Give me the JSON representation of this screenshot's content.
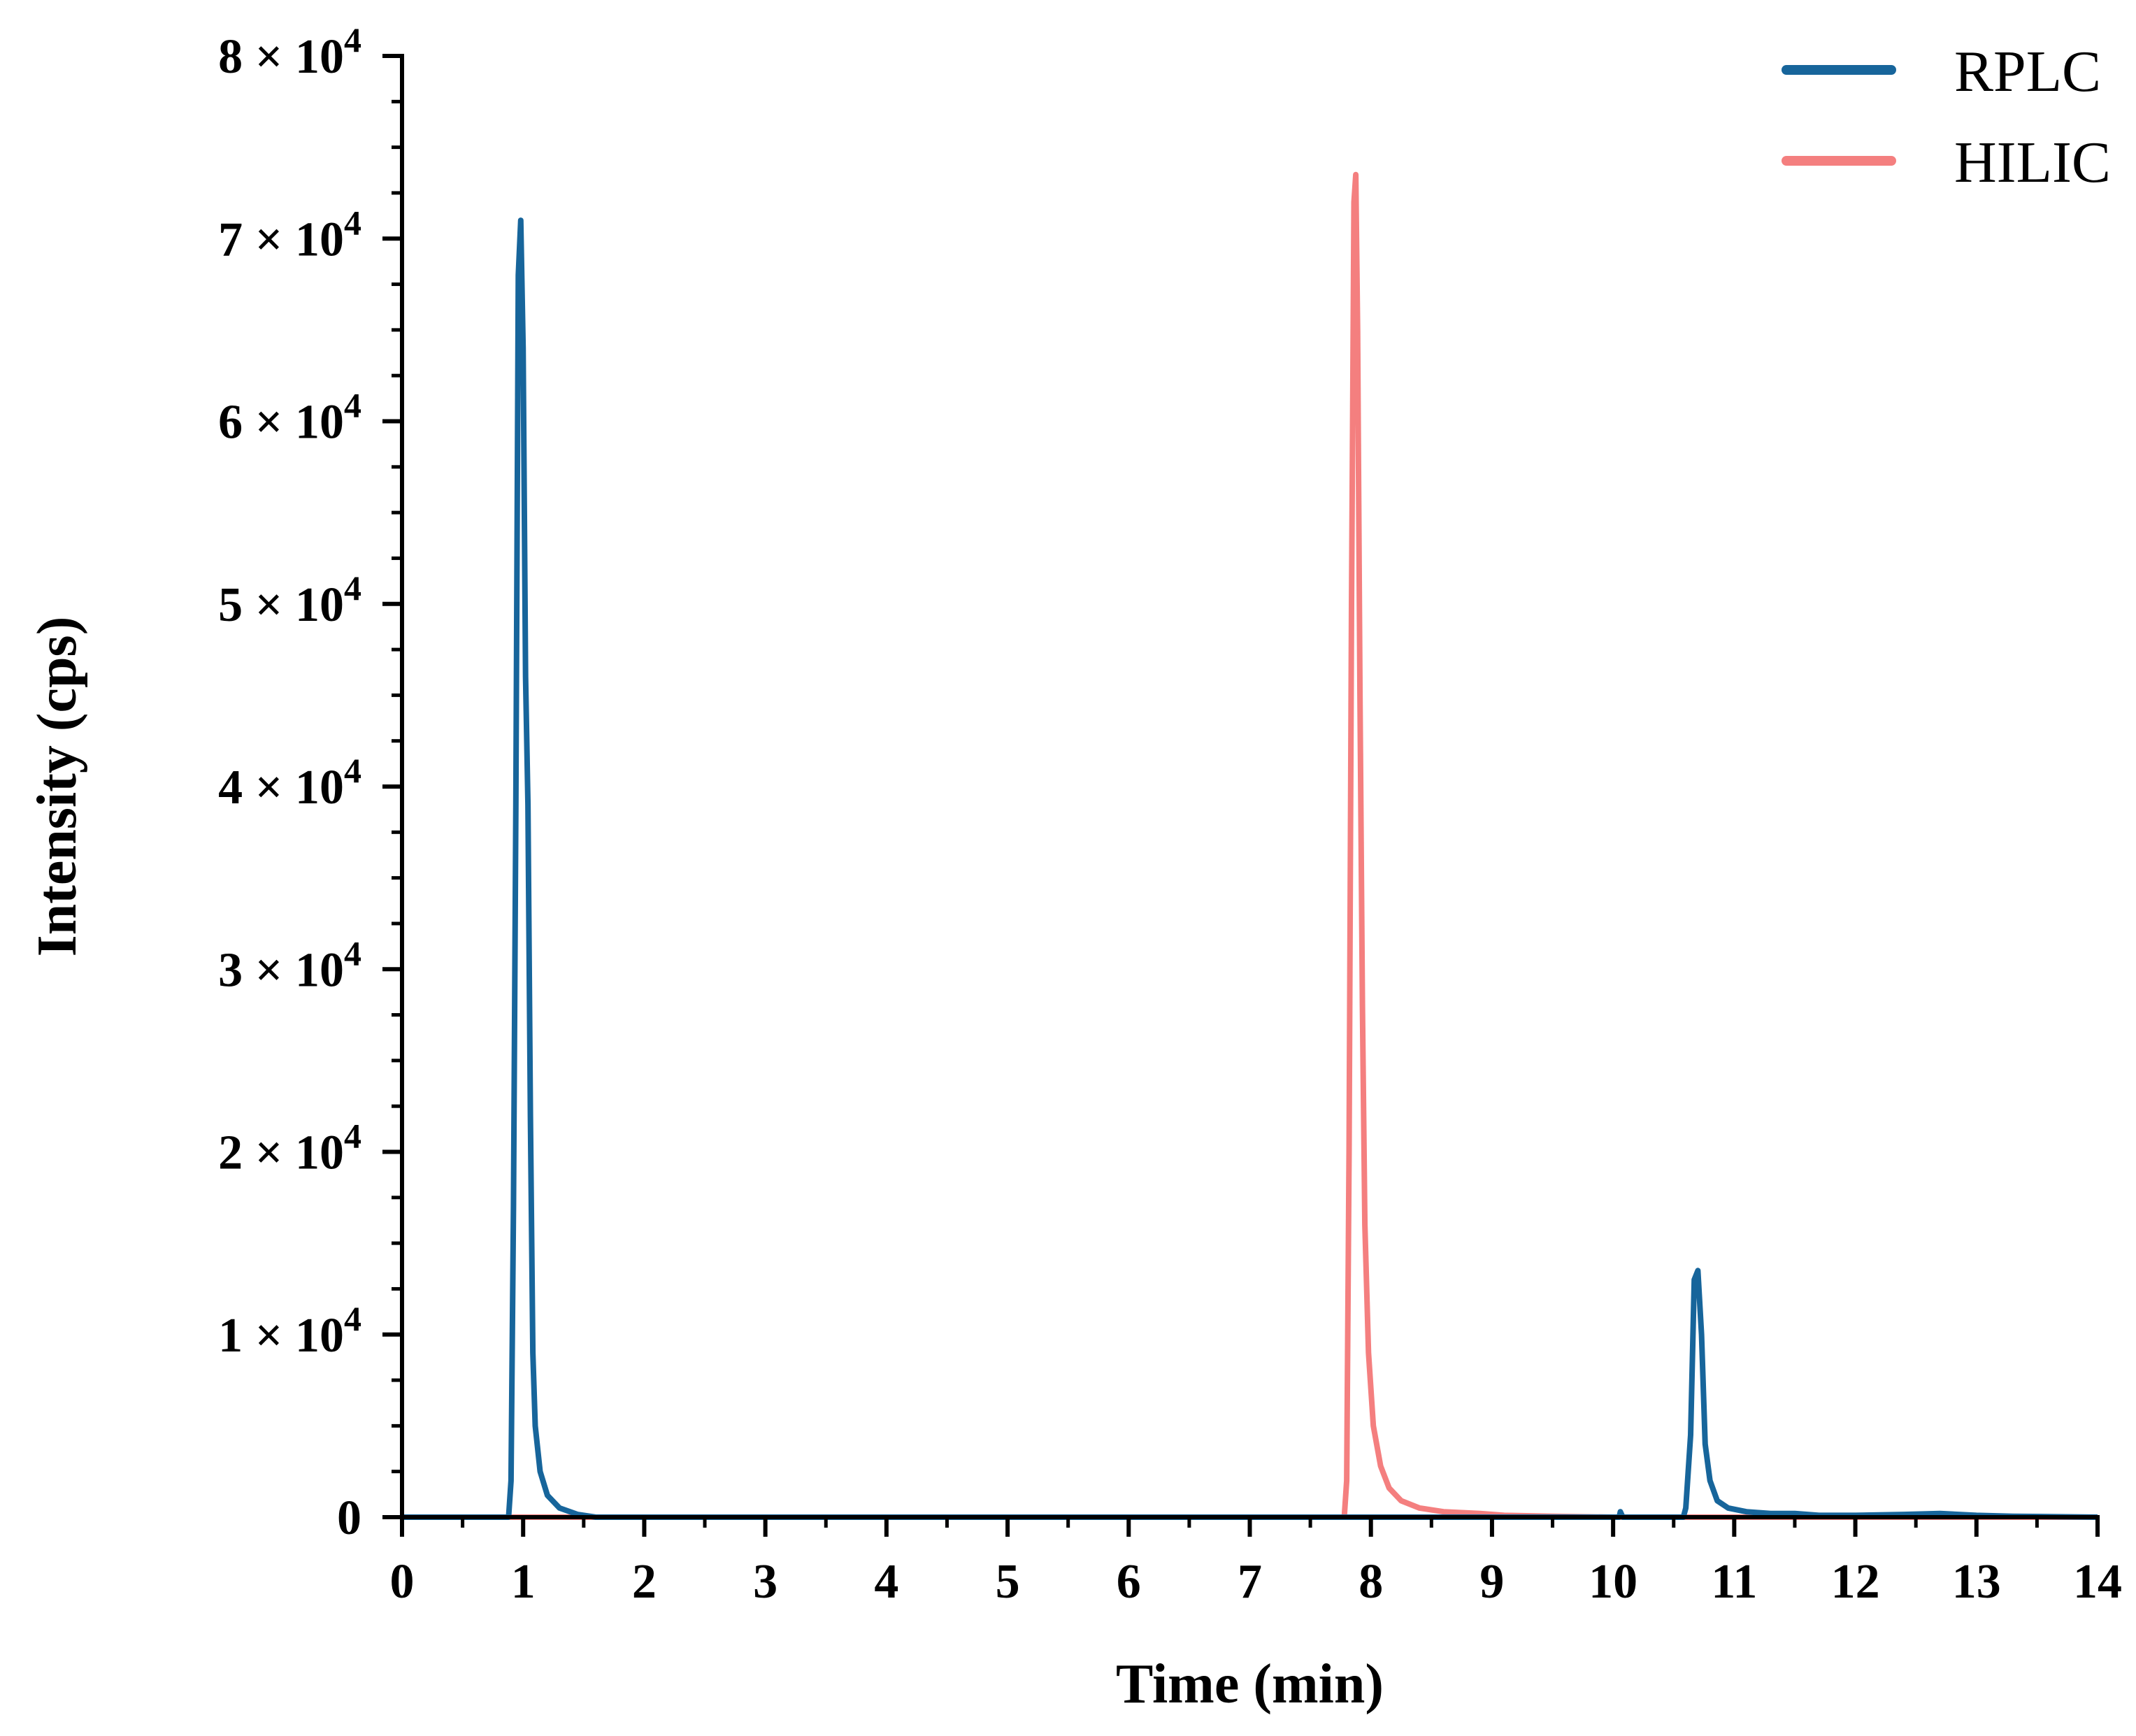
{
  "chart_data": {
    "type": "line",
    "title": "",
    "xlabel": "Time (min)",
    "ylabel": "Intensity (cps)",
    "xlim": [
      0,
      14
    ],
    "ylim": [
      0,
      80000
    ],
    "x_ticks": [
      0,
      1,
      2,
      3,
      4,
      5,
      6,
      7,
      8,
      9,
      10,
      11,
      12,
      13,
      14
    ],
    "x_tick_labels": [
      "0",
      "1",
      "2",
      "3",
      "4",
      "5",
      "6",
      "7",
      "8",
      "9",
      "10",
      "11",
      "12",
      "13",
      "14"
    ],
    "y_ticks": [
      0,
      10000,
      20000,
      30000,
      40000,
      50000,
      60000,
      70000,
      80000
    ],
    "y_tick_labels": [
      {
        "coef": "0",
        "exp": ""
      },
      {
        "coef": "1 × 10",
        "exp": "4"
      },
      {
        "coef": "2 × 10",
        "exp": "4"
      },
      {
        "coef": "3 × 10",
        "exp": "4"
      },
      {
        "coef": "4 × 10",
        "exp": "4"
      },
      {
        "coef": "5 × 10",
        "exp": "4"
      },
      {
        "coef": "6 × 10",
        "exp": "4"
      },
      {
        "coef": "7 × 10",
        "exp": "4"
      },
      {
        "coef": "8 × 10",
        "exp": "4"
      }
    ],
    "grid": false,
    "legend_position": "top-right",
    "series": [
      {
        "name": "RPLC",
        "color": "#17659b",
        "points": [
          [
            0,
            0
          ],
          [
            0.88,
            0
          ],
          [
            0.9,
            2000
          ],
          [
            0.92,
            17000
          ],
          [
            0.94,
            39000
          ],
          [
            0.96,
            68000
          ],
          [
            0.98,
            71000
          ],
          [
            1.0,
            64000
          ],
          [
            1.02,
            46000
          ],
          [
            1.04,
            39000
          ],
          [
            1.06,
            22000
          ],
          [
            1.08,
            9000
          ],
          [
            1.1,
            5000
          ],
          [
            1.14,
            2500
          ],
          [
            1.2,
            1200
          ],
          [
            1.3,
            500
          ],
          [
            1.45,
            150
          ],
          [
            1.6,
            0
          ],
          [
            10.05,
            0
          ],
          [
            10.06,
            300
          ],
          [
            10.08,
            0
          ],
          [
            10.58,
            0
          ],
          [
            10.6,
            500
          ],
          [
            10.64,
            4500
          ],
          [
            10.67,
            13000
          ],
          [
            10.7,
            13500
          ],
          [
            10.73,
            10000
          ],
          [
            10.76,
            4000
          ],
          [
            10.8,
            2000
          ],
          [
            10.86,
            900
          ],
          [
            10.95,
            500
          ],
          [
            11.1,
            300
          ],
          [
            11.3,
            200
          ],
          [
            11.5,
            200
          ],
          [
            11.7,
            100
          ],
          [
            12.0,
            100
          ],
          [
            12.4,
            150
          ],
          [
            12.7,
            200
          ],
          [
            13.0,
            100
          ],
          [
            13.3,
            50
          ],
          [
            14.0,
            0
          ]
        ]
      },
      {
        "name": "HILIC",
        "color": "#f47f7f",
        "points": [
          [
            0,
            0
          ],
          [
            7.78,
            0
          ],
          [
            7.8,
            2000
          ],
          [
            7.82,
            20000
          ],
          [
            7.84,
            50000
          ],
          [
            7.86,
            72000
          ],
          [
            7.875,
            73500
          ],
          [
            7.89,
            65000
          ],
          [
            7.91,
            45000
          ],
          [
            7.93,
            28000
          ],
          [
            7.95,
            16000
          ],
          [
            7.98,
            9000
          ],
          [
            8.02,
            5000
          ],
          [
            8.08,
            2800
          ],
          [
            8.15,
            1600
          ],
          [
            8.25,
            900
          ],
          [
            8.4,
            500
          ],
          [
            8.6,
            300
          ],
          [
            8.9,
            200
          ],
          [
            9.1,
            100
          ],
          [
            9.5,
            50
          ],
          [
            10.0,
            0
          ],
          [
            14.0,
            0
          ]
        ]
      }
    ]
  }
}
